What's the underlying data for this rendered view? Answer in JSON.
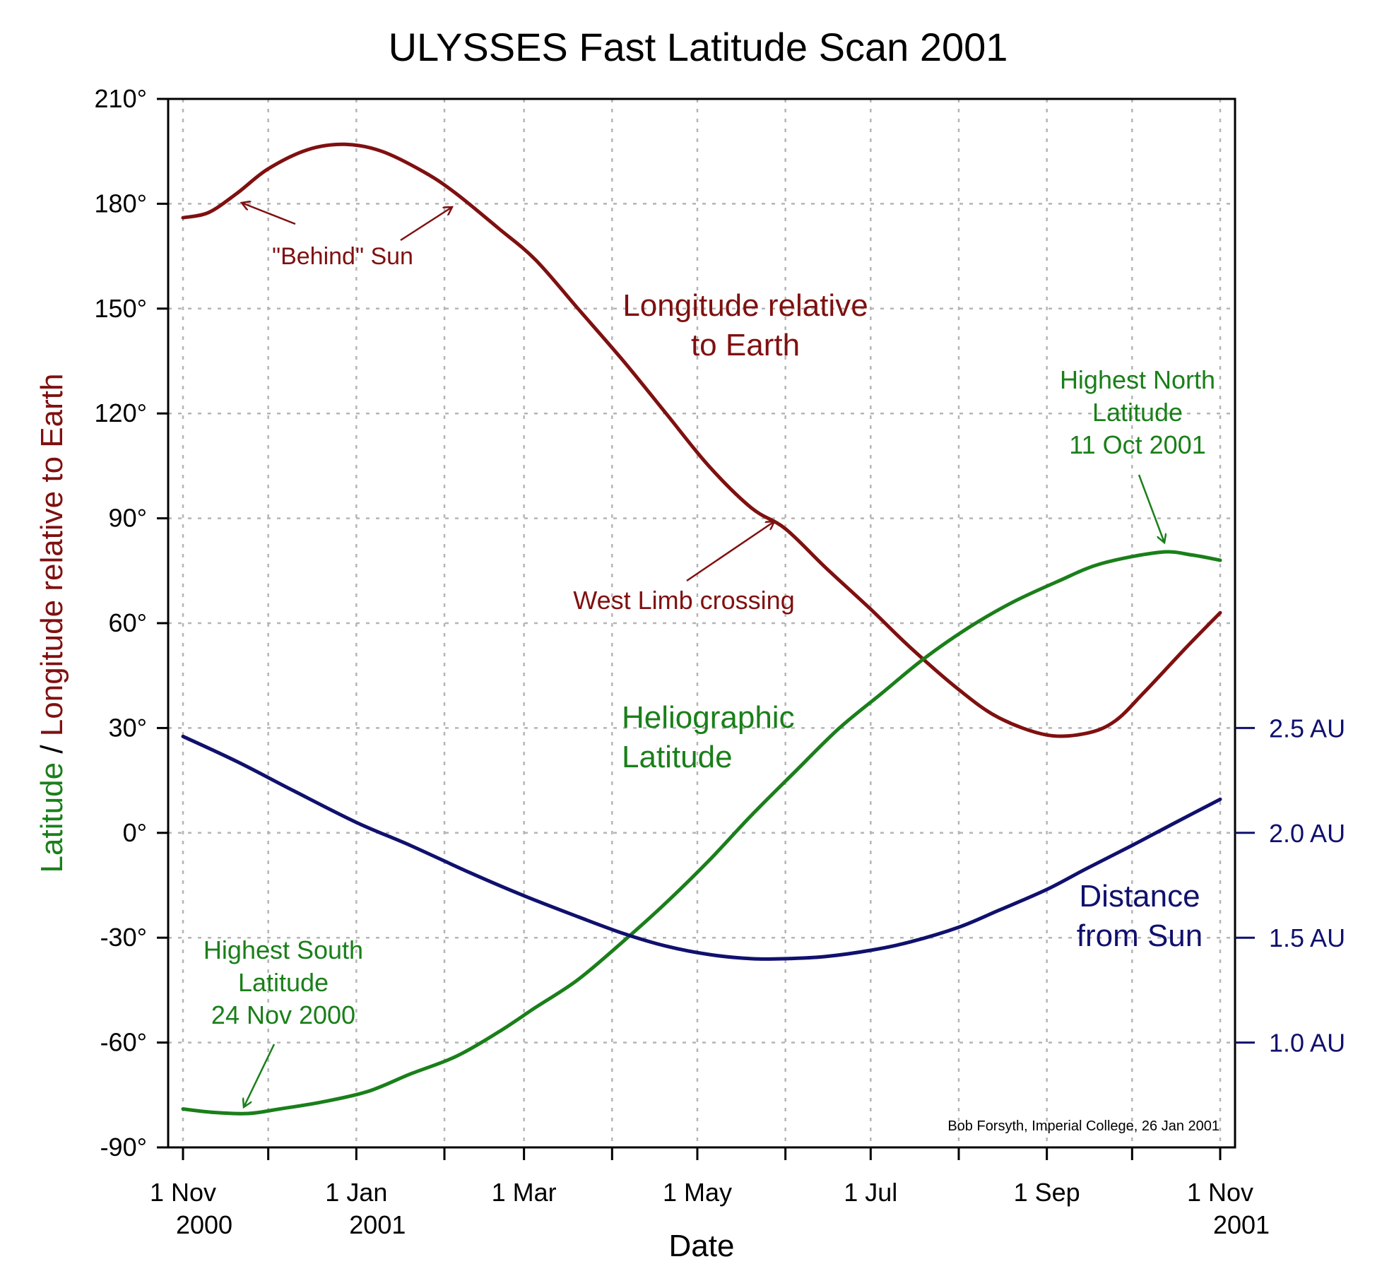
{
  "chart_data": {
    "type": "line",
    "title": "ULYSSES Fast Latitude Scan 2001",
    "xlabel": "Date",
    "ylabel_parts": [
      {
        "text": "Latitude",
        "color": "#1a7f1a"
      },
      {
        "text": " / ",
        "color": "#000000"
      },
      {
        "text": "Longitude relative to Earth",
        "color": "#7f1010"
      }
    ],
    "ylim": [
      -90,
      210
    ],
    "yticks": [
      {
        "value": -90,
        "label": "-90°"
      },
      {
        "value": -60,
        "label": "-60°"
      },
      {
        "value": -30,
        "label": "-30°"
      },
      {
        "value": 0,
        "label": "0°"
      },
      {
        "value": 30,
        "label": "30°"
      },
      {
        "value": 60,
        "label": "60°"
      },
      {
        "value": 90,
        "label": "90°"
      },
      {
        "value": 120,
        "label": "120°"
      },
      {
        "value": 150,
        "label": "150°"
      },
      {
        "value": 180,
        "label": "180°"
      },
      {
        "value": 210,
        "label": "210°"
      }
    ],
    "xlim": [
      "2000-10-24",
      "2001-11-08"
    ],
    "xticks": [
      "2000-11-01",
      "2000-12-01",
      "2001-01-01",
      "2001-02-01",
      "2001-03-01",
      "2001-04-01",
      "2001-05-01",
      "2001-06-01",
      "2001-07-01",
      "2001-08-01",
      "2001-09-01",
      "2001-10-01",
      "2001-11-01"
    ],
    "xtick_labels": [
      {
        "date": "2000-11-01",
        "line1": "1 Nov",
        "line2": "2000"
      },
      {
        "date": "2001-01-01",
        "line1": "1 Jan",
        "line2": "2001"
      },
      {
        "date": "2001-03-01",
        "line1": "1 Mar",
        "line2": ""
      },
      {
        "date": "2001-05-01",
        "line1": "1 May",
        "line2": ""
      },
      {
        "date": "2001-07-01",
        "line1": "1 Jul",
        "line2": ""
      },
      {
        "date": "2001-09-01",
        "line1": "1 Sep",
        "line2": ""
      },
      {
        "date": "2001-11-01",
        "line1": "1 Nov",
        "line2": "2001"
      }
    ],
    "right_axis": {
      "ticks": [
        {
          "value": 2.5,
          "label": "2.5 AU"
        },
        {
          "value": 2.0,
          "label": "2.0 AU"
        },
        {
          "value": 1.5,
          "label": "1.5 AU"
        },
        {
          "value": 1.0,
          "label": "1.0 AU"
        }
      ],
      "color": "#10106e"
    },
    "grid": true,
    "series": [
      {
        "name": "Longitude relative to Earth",
        "color": "#7f1010",
        "axis": "left",
        "points": [
          [
            "2000-11-01",
            176
          ],
          [
            "2000-11-10",
            177.5
          ],
          [
            "2000-11-20",
            183
          ],
          [
            "2000-12-01",
            190
          ],
          [
            "2000-12-15",
            195.5
          ],
          [
            "2000-12-28",
            197
          ],
          [
            "2001-01-10",
            195
          ],
          [
            "2001-01-25",
            189
          ],
          [
            "2001-02-05",
            183
          ],
          [
            "2001-02-20",
            173
          ],
          [
            "2001-03-05",
            164
          ],
          [
            "2001-03-20",
            150
          ],
          [
            "2001-04-05",
            135
          ],
          [
            "2001-04-20",
            120
          ],
          [
            "2001-05-05",
            105
          ],
          [
            "2001-05-20",
            93
          ],
          [
            "2001-06-01",
            87
          ],
          [
            "2001-06-15",
            76
          ],
          [
            "2001-07-01",
            64
          ],
          [
            "2001-07-15",
            53
          ],
          [
            "2001-08-01",
            41
          ],
          [
            "2001-08-15",
            33
          ],
          [
            "2001-09-01",
            28
          ],
          [
            "2001-09-15",
            28.5
          ],
          [
            "2001-09-25",
            32
          ],
          [
            "2001-10-05",
            40
          ],
          [
            "2001-10-20",
            53
          ],
          [
            "2001-11-01",
            63
          ]
        ]
      },
      {
        "name": "Heliographic Latitude",
        "color": "#1a7f1a",
        "axis": "left",
        "points": [
          [
            "2000-11-01",
            -79
          ],
          [
            "2000-11-12",
            -80
          ],
          [
            "2000-11-24",
            -80.3
          ],
          [
            "2000-12-05",
            -79
          ],
          [
            "2000-12-20",
            -77
          ],
          [
            "2001-01-05",
            -74
          ],
          [
            "2001-01-20",
            -69
          ],
          [
            "2001-02-05",
            -64
          ],
          [
            "2001-02-20",
            -57
          ],
          [
            "2001-03-05",
            -50
          ],
          [
            "2001-03-20",
            -42
          ],
          [
            "2001-04-05",
            -31
          ],
          [
            "2001-04-20",
            -20
          ],
          [
            "2001-05-05",
            -8
          ],
          [
            "2001-05-20",
            5
          ],
          [
            "2001-06-05",
            18
          ],
          [
            "2001-06-20",
            30
          ],
          [
            "2001-07-05",
            40
          ],
          [
            "2001-07-20",
            50
          ],
          [
            "2001-08-05",
            59
          ],
          [
            "2001-08-20",
            66
          ],
          [
            "2001-09-05",
            72
          ],
          [
            "2001-09-20",
            77
          ],
          [
            "2001-10-11",
            80.3
          ],
          [
            "2001-10-22",
            79.5
          ],
          [
            "2001-11-01",
            78
          ]
        ]
      },
      {
        "name": "Distance from Sun",
        "color": "#10106e",
        "axis": "right",
        "points": [
          [
            "2000-11-01",
            2.46
          ],
          [
            "2000-11-20",
            2.34
          ],
          [
            "2000-12-10",
            2.2
          ],
          [
            "2001-01-01",
            2.05
          ],
          [
            "2001-01-20",
            1.94
          ],
          [
            "2001-02-10",
            1.81
          ],
          [
            "2001-03-01",
            1.7
          ],
          [
            "2001-03-20",
            1.6
          ],
          [
            "2001-04-05",
            1.52
          ],
          [
            "2001-04-20",
            1.46
          ],
          [
            "2001-05-05",
            1.42
          ],
          [
            "2001-05-20",
            1.4
          ],
          [
            "2001-06-01",
            1.4
          ],
          [
            "2001-06-15",
            1.41
          ],
          [
            "2001-07-01",
            1.44
          ],
          [
            "2001-07-15",
            1.48
          ],
          [
            "2001-08-01",
            1.55
          ],
          [
            "2001-08-15",
            1.63
          ],
          [
            "2001-09-01",
            1.73
          ],
          [
            "2001-09-15",
            1.83
          ],
          [
            "2001-10-01",
            1.94
          ],
          [
            "2001-10-15",
            2.04
          ],
          [
            "2001-11-01",
            2.16
          ]
        ]
      }
    ],
    "annotations": [
      {
        "id": "behind-sun",
        "lines": [
          "\"Behind\" Sun"
        ],
        "color": "#7f1010",
        "size": 34
      },
      {
        "id": "longitude-label",
        "lines": [
          "Longitude relative",
          "to Earth"
        ],
        "color": "#7f1010",
        "size": 44
      },
      {
        "id": "west-limb",
        "lines": [
          "West Limb crossing"
        ],
        "color": "#7f1010",
        "size": 36
      },
      {
        "id": "latitude-label",
        "lines": [
          "Heliographic",
          "Latitude"
        ],
        "color": "#1a7f1a",
        "size": 44
      },
      {
        "id": "highest-north",
        "lines": [
          "Highest North",
          "Latitude",
          "11 Oct 2001"
        ],
        "color": "#1a7f1a",
        "size": 36
      },
      {
        "id": "highest-south",
        "lines": [
          "Highest South",
          "Latitude",
          "24 Nov 2000"
        ],
        "color": "#1a7f1a",
        "size": 36
      },
      {
        "id": "distance-label",
        "lines": [
          "Distance",
          "from Sun"
        ],
        "color": "#10106e",
        "size": 44
      },
      {
        "id": "credit",
        "lines": [
          "Bob Forsyth, Imperial College, 26 Jan 2001"
        ],
        "color": "#000000",
        "size": 20
      }
    ]
  }
}
